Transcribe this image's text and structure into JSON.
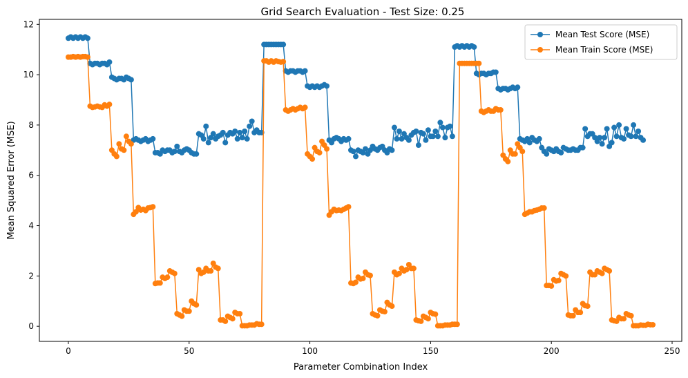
{
  "chart_data": {
    "type": "line",
    "title": "Grid Search Evaluation - Test Size: 0.25",
    "xlabel": "Parameter Combination Index",
    "ylabel": "Mean Squared Error (MSE)",
    "xlim": [
      -12,
      254
    ],
    "ylim": [
      -0.6,
      12.2
    ],
    "xticks": [
      0,
      50,
      100,
      150,
      200,
      250
    ],
    "yticks": [
      0,
      2,
      4,
      6,
      8,
      10,
      12
    ],
    "grid": false,
    "legend_position": "top-right",
    "series": [
      {
        "name": "Mean Test Score (MSE)",
        "color": "#1f77b4",
        "values": [
          11.45,
          11.5,
          11.45,
          11.5,
          11.45,
          11.5,
          11.45,
          11.5,
          11.45,
          10.45,
          10.4,
          10.45,
          10.45,
          10.4,
          10.45,
          10.45,
          10.4,
          10.5,
          9.9,
          9.85,
          9.8,
          9.85,
          9.85,
          9.8,
          9.9,
          9.85,
          9.8,
          7.4,
          7.45,
          7.4,
          7.35,
          7.4,
          7.45,
          7.35,
          7.4,
          7.45,
          6.9,
          6.9,
          6.85,
          7.0,
          6.95,
          7.0,
          7.0,
          6.9,
          6.95,
          7.15,
          6.95,
          6.9,
          7.0,
          7.05,
          7.0,
          6.9,
          6.85,
          6.85,
          7.65,
          7.6,
          7.45,
          7.95,
          7.3,
          7.5,
          7.65,
          7.45,
          7.55,
          7.6,
          7.7,
          7.3,
          7.6,
          7.7,
          7.65,
          7.75,
          7.45,
          7.7,
          7.5,
          7.75,
          7.45,
          7.95,
          8.15,
          7.7,
          7.8,
          7.7,
          7.7,
          11.2,
          11.2,
          11.2,
          11.2,
          11.2,
          11.2,
          11.2,
          11.2,
          11.2,
          10.15,
          10.1,
          10.15,
          10.15,
          10.1,
          10.15,
          10.15,
          10.1,
          10.15,
          9.55,
          9.5,
          9.55,
          9.5,
          9.55,
          9.5,
          9.55,
          9.6,
          9.55,
          7.4,
          7.3,
          7.45,
          7.5,
          7.45,
          7.35,
          7.45,
          7.4,
          7.45,
          7.0,
          6.95,
          6.75,
          7.0,
          6.95,
          6.9,
          7.05,
          6.85,
          7.0,
          7.15,
          7.05,
          7.0,
          7.1,
          7.15,
          7.0,
          6.9,
          7.05,
          7.0,
          7.9,
          7.45,
          7.75,
          7.45,
          7.65,
          7.5,
          7.4,
          7.6,
          7.7,
          7.75,
          7.2,
          7.7,
          7.65,
          7.4,
          7.8,
          7.55,
          7.55,
          7.75,
          7.55,
          8.1,
          7.9,
          7.5,
          7.9,
          7.95,
          7.55,
          11.1,
          11.15,
          11.1,
          11.15,
          11.1,
          11.15,
          11.1,
          11.15,
          11.1,
          10.05,
          10.0,
          10.05,
          10.05,
          10.0,
          10.05,
          10.05,
          10.1,
          10.1,
          9.45,
          9.4,
          9.45,
          9.45,
          9.4,
          9.45,
          9.5,
          9.45,
          9.5,
          7.45,
          7.4,
          7.35,
          7.45,
          7.3,
          7.5,
          7.4,
          7.35,
          7.45,
          7.1,
          6.95,
          6.85,
          7.05,
          7.0,
          6.95,
          7.05,
          6.95,
          6.9,
          7.1,
          7.05,
          7.0,
          7.0,
          7.05,
          7.0,
          7.0,
          7.1,
          7.1,
          7.85,
          7.55,
          7.65,
          7.65,
          7.5,
          7.35,
          7.5,
          7.25,
          7.5,
          7.85,
          7.15,
          7.3,
          7.9,
          7.55,
          8.0,
          7.5,
          7.45,
          7.85,
          7.6,
          7.55,
          8.0,
          7.55,
          7.75,
          7.5,
          7.4
        ]
      },
      {
        "name": "Mean Train Score (MSE)",
        "color": "#ff7f0e",
        "values": [
          10.7,
          10.7,
          10.72,
          10.7,
          10.72,
          10.7,
          10.72,
          10.72,
          10.7,
          8.75,
          8.7,
          8.72,
          8.75,
          8.72,
          8.7,
          8.8,
          8.75,
          8.82,
          7.0,
          6.85,
          6.75,
          7.25,
          7.05,
          7.0,
          7.55,
          7.35,
          7.25,
          4.45,
          4.55,
          4.72,
          4.62,
          4.65,
          4.6,
          4.7,
          4.72,
          4.75,
          1.7,
          1.72,
          1.72,
          1.95,
          1.9,
          1.95,
          2.2,
          2.15,
          2.1,
          0.5,
          0.45,
          0.4,
          0.65,
          0.6,
          0.6,
          1.0,
          0.9,
          0.85,
          2.25,
          2.1,
          2.15,
          2.3,
          2.2,
          2.2,
          2.5,
          2.35,
          2.3,
          0.25,
          0.25,
          0.2,
          0.4,
          0.35,
          0.3,
          0.55,
          0.5,
          0.5,
          0.02,
          0.02,
          0.02,
          0.05,
          0.05,
          0.05,
          0.1,
          0.08,
          0.08,
          10.55,
          10.55,
          10.5,
          10.55,
          10.5,
          10.55,
          10.52,
          10.5,
          10.52,
          8.6,
          8.55,
          8.6,
          8.65,
          8.6,
          8.65,
          8.7,
          8.65,
          8.7,
          6.85,
          6.75,
          6.65,
          7.1,
          6.95,
          6.9,
          7.35,
          7.2,
          7.05,
          4.42,
          4.55,
          4.65,
          4.6,
          4.62,
          4.6,
          4.65,
          4.7,
          4.75,
          1.72,
          1.7,
          1.75,
          1.95,
          1.88,
          1.9,
          2.15,
          2.05,
          2.02,
          0.5,
          0.45,
          0.42,
          0.65,
          0.6,
          0.58,
          0.95,
          0.85,
          0.8,
          2.15,
          2.05,
          2.1,
          2.3,
          2.2,
          2.25,
          2.45,
          2.3,
          2.3,
          0.25,
          0.22,
          0.2,
          0.4,
          0.35,
          0.3,
          0.55,
          0.5,
          0.48,
          0.02,
          0.02,
          0.02,
          0.05,
          0.05,
          0.05,
          0.08,
          0.08,
          0.08,
          10.45,
          10.45,
          10.45,
          10.45,
          10.45,
          10.45,
          10.45,
          10.45,
          10.45,
          8.55,
          8.5,
          8.55,
          8.6,
          8.55,
          8.55,
          8.65,
          8.6,
          8.6,
          6.8,
          6.65,
          6.55,
          7.0,
          6.85,
          6.85,
          7.25,
          7.1,
          6.95,
          4.45,
          4.5,
          4.55,
          4.55,
          4.6,
          4.62,
          4.65,
          4.7,
          4.7,
          1.62,
          1.62,
          1.6,
          1.85,
          1.8,
          1.82,
          2.1,
          2.05,
          2.0,
          0.45,
          0.42,
          0.42,
          0.65,
          0.55,
          0.55,
          0.9,
          0.82,
          0.8,
          2.15,
          2.05,
          2.05,
          2.2,
          2.15,
          2.1,
          2.3,
          2.25,
          2.2,
          0.25,
          0.22,
          0.2,
          0.35,
          0.3,
          0.3,
          0.5,
          0.45,
          0.42,
          0.02,
          0.02,
          0.02,
          0.05,
          0.04,
          0.04,
          0.08,
          0.06,
          0.06
        ]
      }
    ]
  }
}
